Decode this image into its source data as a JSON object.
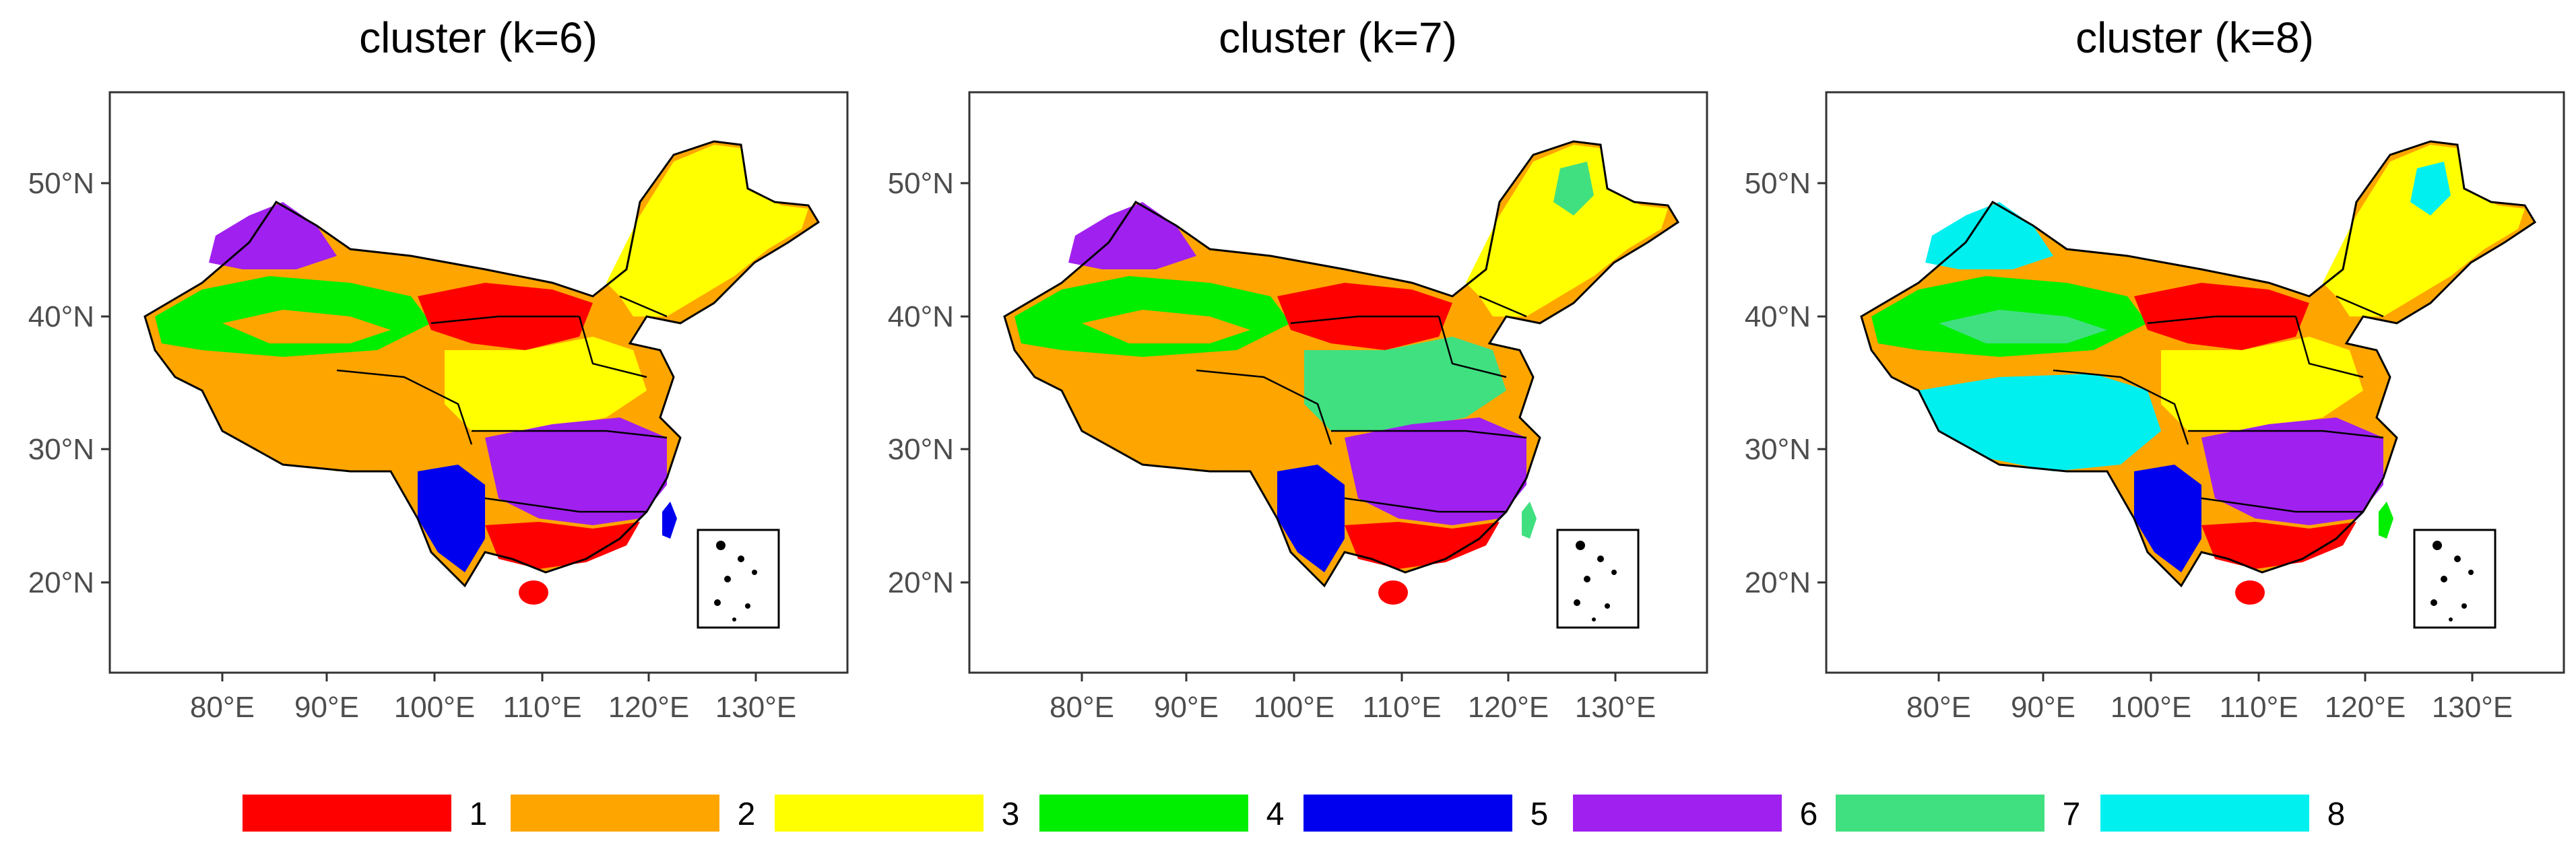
{
  "palette": {
    "1": "#ff0000",
    "2": "#ffa500",
    "3": "#ffff00",
    "4": "#00ee00",
    "5": "#0000ee",
    "6": "#a020f0",
    "7": "#40e080",
    "8": "#00f0f0"
  },
  "panels": [
    {
      "title": "cluster (k=6)",
      "x_ticks": [
        "80°E",
        "90°E",
        "100°E",
        "110°E",
        "120°E",
        "130°E"
      ],
      "y_ticks": [
        "20°N",
        "30°N",
        "40°N",
        "50°N"
      ],
      "regions": {
        "nw_north": "6",
        "nw_mid": "4",
        "nw_basin": "2",
        "tibet": "2",
        "sw": "5",
        "southeast": "6",
        "south": "1",
        "central": "3",
        "north": "1",
        "northeast": "3",
        "ne_patch": "3",
        "taiwan": "5",
        "hainan": "1"
      }
    },
    {
      "title": "cluster (k=7)",
      "x_ticks": [
        "80°E",
        "90°E",
        "100°E",
        "110°E",
        "120°E",
        "130°E"
      ],
      "y_ticks": [
        "20°N",
        "30°N",
        "40°N",
        "50°N"
      ],
      "regions": {
        "nw_north": "6",
        "nw_mid": "4",
        "nw_basin": "2",
        "tibet": "2",
        "sw": "5",
        "southeast": "6",
        "south": "1",
        "central": "7",
        "north": "1",
        "northeast": "3",
        "ne_patch": "7",
        "taiwan": "7",
        "hainan": "1"
      }
    },
    {
      "title": "cluster (k=8)",
      "x_ticks": [
        "80°E",
        "90°E",
        "100°E",
        "110°E",
        "120°E",
        "130°E"
      ],
      "y_ticks": [
        "20°N",
        "30°N",
        "40°N",
        "50°N"
      ],
      "regions": {
        "nw_north": "8",
        "nw_mid": "4",
        "nw_basin": "7",
        "tibet": "8",
        "sw": "5",
        "southeast": "6",
        "south": "1",
        "central": "3",
        "north": "1",
        "northeast": "3",
        "ne_patch": "8",
        "taiwan": "4",
        "hainan": "1"
      }
    }
  ],
  "legend": [
    {
      "label": "1",
      "color": "#ff0000"
    },
    {
      "label": "2",
      "color": "#ffa500"
    },
    {
      "label": "3",
      "color": "#ffff00"
    },
    {
      "label": "4",
      "color": "#00ee00"
    },
    {
      "label": "5",
      "color": "#0000ee"
    },
    {
      "label": "6",
      "color": "#a020f0"
    },
    {
      "label": "7",
      "color": "#40e080"
    },
    {
      "label": "8",
      "color": "#00f0f0"
    }
  ]
}
